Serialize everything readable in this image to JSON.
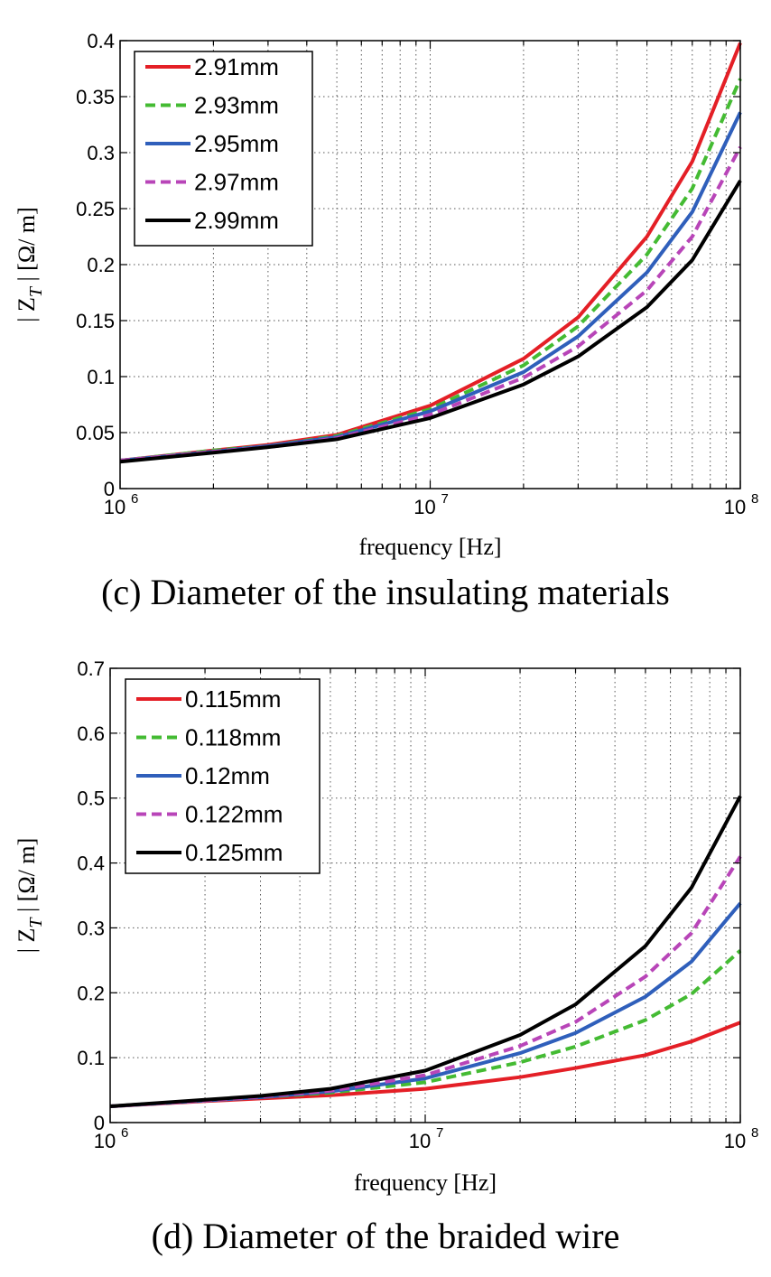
{
  "chart_data": [
    {
      "type": "line",
      "caption": "(c) Diameter of the insulating materials",
      "xlabel": "frequency [Hz]",
      "ylabel": "| Z_T | [Ω/ m]",
      "xscale": "log",
      "xlim": [
        1000000,
        100000000
      ],
      "ylim": [
        0,
        0.4
      ],
      "grid": true,
      "legend": "top-left",
      "xticks": [
        {
          "base": "10",
          "exp": "6"
        },
        {
          "base": "10",
          "exp": "7"
        },
        {
          "base": "10",
          "exp": "8"
        }
      ],
      "yticks": [
        "0",
        "0.05",
        "0.1",
        "0.15",
        "0.2",
        "0.25",
        "0.3",
        "0.35",
        "0.4"
      ],
      "x": [
        1000000,
        2000000,
        3000000,
        5000000,
        10000000,
        20000000,
        30000000,
        50000000,
        70000000,
        100000000
      ],
      "series": [
        {
          "name": "2.91mm",
          "color": "#e41f26",
          "dash": false,
          "values": [
            0.025,
            0.034,
            0.039,
            0.048,
            0.074,
            0.116,
            0.153,
            0.225,
            0.292,
            0.398
          ]
        },
        {
          "name": "2.93mm",
          "color": "#44bb33",
          "dash": true,
          "values": [
            0.025,
            0.034,
            0.038,
            0.047,
            0.071,
            0.11,
            0.145,
            0.209,
            0.268,
            0.366
          ]
        },
        {
          "name": "2.95mm",
          "color": "#2f5fbb",
          "dash": false,
          "values": [
            0.025,
            0.033,
            0.038,
            0.046,
            0.069,
            0.104,
            0.136,
            0.193,
            0.247,
            0.336
          ]
        },
        {
          "name": "2.97mm",
          "color": "#b845b8",
          "dash": true,
          "values": [
            0.025,
            0.033,
            0.037,
            0.045,
            0.066,
            0.099,
            0.127,
            0.177,
            0.225,
            0.305
          ]
        },
        {
          "name": "2.99mm",
          "color": "#000000",
          "dash": false,
          "values": [
            0.024,
            0.032,
            0.037,
            0.044,
            0.063,
            0.093,
            0.118,
            0.162,
            0.204,
            0.275
          ]
        }
      ]
    },
    {
      "type": "line",
      "caption": "(d) Diameter of the braided wire",
      "xlabel": "frequency [Hz]",
      "ylabel": "| Z_T | [Ω/ m]",
      "xscale": "log",
      "xlim": [
        1000000,
        100000000
      ],
      "ylim": [
        0,
        0.7
      ],
      "grid": true,
      "legend": "top-left",
      "xticks": [
        {
          "base": "10",
          "exp": "6"
        },
        {
          "base": "10",
          "exp": "7"
        },
        {
          "base": "10",
          "exp": "8"
        }
      ],
      "yticks": [
        "0",
        "0.1",
        "0.2",
        "0.3",
        "0.4",
        "0.5",
        "0.6",
        "0.7"
      ],
      "x": [
        1000000,
        2000000,
        3000000,
        5000000,
        10000000,
        20000000,
        30000000,
        50000000,
        70000000,
        100000000
      ],
      "series": [
        {
          "name": "0.115mm",
          "color": "#e41f26",
          "dash": false,
          "values": [
            0.025,
            0.033,
            0.037,
            0.042,
            0.052,
            0.07,
            0.084,
            0.104,
            0.125,
            0.154
          ]
        },
        {
          "name": "0.118mm",
          "color": "#44bb33",
          "dash": true,
          "values": [
            0.025,
            0.034,
            0.039,
            0.046,
            0.062,
            0.093,
            0.117,
            0.158,
            0.198,
            0.265
          ]
        },
        {
          "name": "0.12mm",
          "color": "#2f5fbb",
          "dash": false,
          "values": [
            0.025,
            0.034,
            0.039,
            0.048,
            0.068,
            0.107,
            0.138,
            0.194,
            0.248,
            0.338
          ]
        },
        {
          "name": "0.122mm",
          "color": "#b845b8",
          "dash": true,
          "values": [
            0.025,
            0.034,
            0.04,
            0.049,
            0.073,
            0.118,
            0.155,
            0.225,
            0.292,
            0.41
          ]
        },
        {
          "name": "0.125mm",
          "color": "#000000",
          "dash": false,
          "values": [
            0.025,
            0.035,
            0.041,
            0.052,
            0.08,
            0.135,
            0.182,
            0.272,
            0.362,
            0.503
          ]
        }
      ]
    }
  ]
}
